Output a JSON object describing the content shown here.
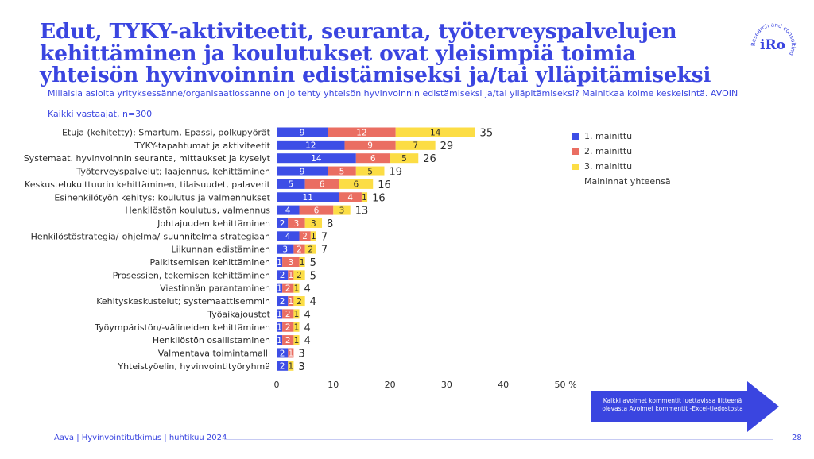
{
  "title": "Edut, TYKY-aktiviteetit, seuranta, työterveyspalvelujen kehittäminen ja koulutukset ovat yleisimpiä toimia yhteisön hyvinvoinnin edistämiseksi ja/tai ylläpitämiseksi",
  "subtitle": "Millaisia asioita yrityksessänne/organisaatiossanne on jo tehty yhteisön hyvinvoinnin edistämiseksi ja/tai ylläpitämiseksi? Mainitkaa kolme keskeisintä. AVOIN",
  "sample": "Kaikki vastaajat, n=300",
  "logo": {
    "text": "iRo",
    "ring_text": "Research and consulting"
  },
  "callout": {
    "text": "Kaikki avoimet kommentit luettavissa liitteenä olevasta Avoimet kommentit -Excel-tiedostosta"
  },
  "footer": {
    "text": "Aava | Hyvinvointitutkimus | huhtikuu 2024",
    "page": "28"
  },
  "colors": {
    "accent": "#3a45e0",
    "first": "#3d4ee6",
    "second": "#ea6e62",
    "third": "#fcdd45",
    "text": "#2b2b2b"
  },
  "legend": {
    "items": [
      "1. mainittu",
      "2. mainittu",
      "3. mainittu"
    ],
    "total_label": "Maininnat yhteensä"
  },
  "chart_data": {
    "type": "bar",
    "orientation": "horizontal",
    "stacked": true,
    "categories": [
      "Etuja (kehitetty): Smartum, Epassi, polkupyörät",
      "TYKY-tapahtumat ja aktiviteetit",
      "Systemaat. hyvinvoinnin seuranta, mittaukset ja kyselyt",
      "Työterveyspalvelut; laajennus, kehittäminen",
      "Keskustelukulttuurin kehittäminen, tilaisuudet, palaverit",
      "Esihenkilötyön kehitys: koulutus ja valmennukset",
      "Henkilöstön koulutus, valmennus",
      "Johtajuuden kehittäminen",
      "Henkilöstöstrategia/-ohjelma/-suunnitelma strategiaan",
      "Liikunnan edistäminen",
      "Palkitsemisen kehittäminen",
      "Prosessien, tekemisen kehittäminen",
      "Viestinnän parantaminen",
      "Kehityskeskustelut; systemaattisemmin",
      "Työaikajoustot",
      "Työympäristön/-välineiden kehittäminen",
      "Henkilöstön osallistaminen",
      "Valmentava toimintamalli",
      "Yhteistyöelin, hyvinvointityöryhmä"
    ],
    "series": [
      {
        "name": "1. mainittu",
        "values": [
          9,
          12,
          14,
          9,
          5,
          11,
          4,
          2,
          4,
          3,
          1,
          2,
          1,
          2,
          1,
          1,
          1,
          2,
          2
        ]
      },
      {
        "name": "2. mainittu",
        "values": [
          12,
          9,
          6,
          5,
          6,
          4,
          6,
          3,
          2,
          2,
          3,
          1,
          2,
          1,
          2,
          2,
          2,
          1,
          0
        ]
      },
      {
        "name": "3. mainittu",
        "values": [
          14,
          7,
          5,
          5,
          6,
          1,
          3,
          3,
          1,
          2,
          1,
          2,
          1,
          2,
          1,
          1,
          1,
          0,
          1
        ]
      }
    ],
    "segment_labels": [
      [
        "9",
        "12",
        "14"
      ],
      [
        "12",
        "9",
        "7"
      ],
      [
        "14",
        "6",
        "5"
      ],
      [
        "9",
        "5",
        "5"
      ],
      [
        "5",
        "6",
        "6"
      ],
      [
        "11",
        "4",
        "1"
      ],
      [
        "4",
        "6",
        "3"
      ],
      [
        "2",
        "3",
        "3"
      ],
      [
        "4",
        "2",
        "1"
      ],
      [
        "3",
        "2",
        "2"
      ],
      [
        "1",
        "3",
        "1"
      ],
      [
        "2",
        "1",
        "2"
      ],
      [
        "1",
        "2",
        "1"
      ],
      [
        "2",
        "1",
        "2"
      ],
      [
        "1",
        "2",
        "1"
      ],
      [
        "1",
        "2",
        "1"
      ],
      [
        "1",
        "2",
        "1"
      ],
      [
        "2",
        "1",
        ""
      ],
      [
        "2",
        "",
        "1"
      ]
    ],
    "totals": [
      35,
      29,
      26,
      19,
      16,
      16,
      13,
      8,
      7,
      7,
      5,
      5,
      4,
      4,
      4,
      4,
      4,
      3,
      3
    ],
    "x_ticks": [
      0,
      10,
      20,
      30,
      40,
      50
    ],
    "x_unit": "%",
    "xlim": [
      0,
      50
    ]
  }
}
